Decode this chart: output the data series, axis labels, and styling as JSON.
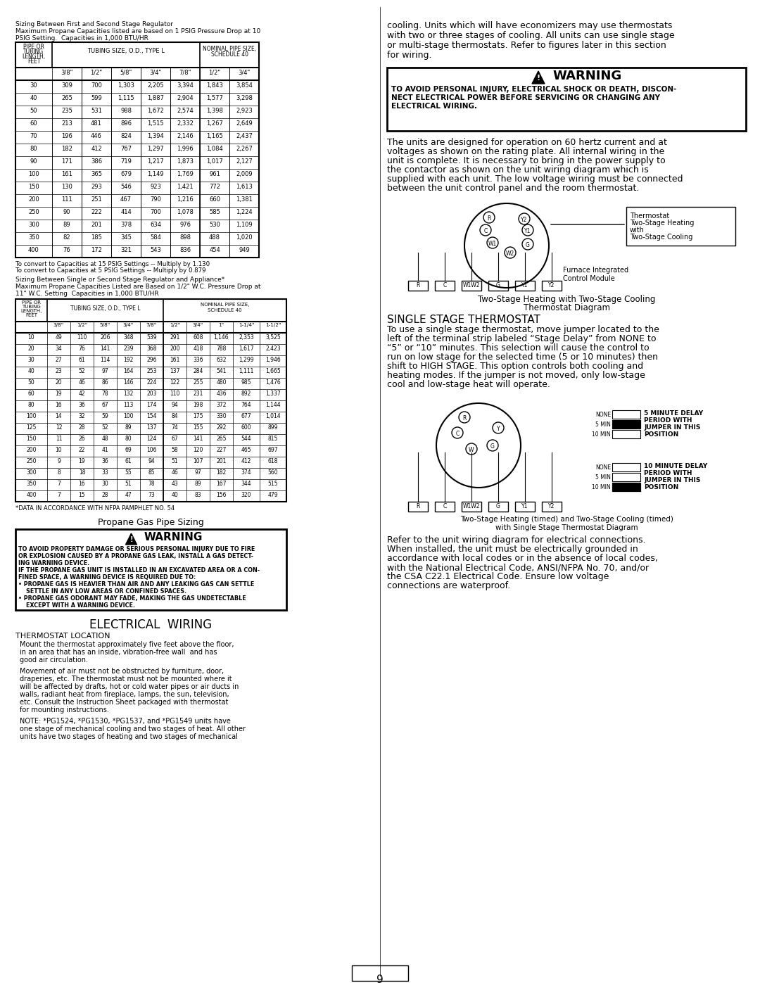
{
  "page_num": "9",
  "bg_color": "#ffffff",
  "title1": "Sizing Between First and Second Stage Regulator",
  "title1_sub1": "Maximum Propane Capacities listed are based on 1 PSIG Pressure Drop at 10",
  "title1_sub2": "PSIG Setting.  Capacities in 1,000 BTU/HR",
  "table1_header1": "PIPE OR\nTUBING\nLENGTH,\nFEET",
  "table1_header2": "TUBING SIZE, O.D., TYPE L",
  "table1_header3": "NOMINAL PIPE SIZE,\nSCHEDULE 40",
  "table1_col_labels": [
    "3/8\"",
    "1/2\"",
    "5/8\"",
    "3/4\"",
    "7/8\"",
    "1/2\"",
    "3/4\""
  ],
  "table1_rows": [
    [
      "30",
      "309",
      "700",
      "1,303",
      "2,205",
      "3,394",
      "1,843",
      "3,854"
    ],
    [
      "40",
      "265",
      "599",
      "1,115",
      "1,887",
      "2,904",
      "1,577",
      "3,298"
    ],
    [
      "50",
      "235",
      "531",
      "988",
      "1,672",
      "2,574",
      "1,398",
      "2,923"
    ],
    [
      "60",
      "213",
      "481",
      "896",
      "1,515",
      "2,332",
      "1,267",
      "2,649"
    ],
    [
      "70",
      "196",
      "446",
      "824",
      "1,394",
      "2,146",
      "1,165",
      "2,437"
    ],
    [
      "80",
      "182",
      "412",
      "767",
      "1,297",
      "1,996",
      "1,084",
      "2,267"
    ],
    [
      "90",
      "171",
      "386",
      "719",
      "1,217",
      "1,873",
      "1,017",
      "2,127"
    ],
    [
      "100",
      "161",
      "365",
      "679",
      "1,149",
      "1,769",
      "961",
      "2,009"
    ],
    [
      "150",
      "130",
      "293",
      "546",
      "923",
      "1,421",
      "772",
      "1,613"
    ],
    [
      "200",
      "111",
      "251",
      "467",
      "790",
      "1,216",
      "660",
      "1,381"
    ],
    [
      "250",
      "90",
      "222",
      "414",
      "700",
      "1,078",
      "585",
      "1,224"
    ],
    [
      "300",
      "89",
      "201",
      "378",
      "634",
      "976",
      "530",
      "1,109"
    ],
    [
      "350",
      "82",
      "185",
      "345",
      "584",
      "898",
      "488",
      "1,020"
    ],
    [
      "400",
      "76",
      "172",
      "321",
      "543",
      "836",
      "454",
      "949"
    ]
  ],
  "table1_footer1": "To convert to Capacities at 15 PSIG Settings -- Multiply by 1.130",
  "table1_footer2": "To convert to Capacities at 5 PSIG Settings -- Multiply by 0.879",
  "title2": "Sizing Between Single or Second Stage Regulator and Appliance*",
  "title2_sub1": "Maximum Propane Capacities Listed are Based on 1/2\" W.C. Pressure Drop at",
  "title2_sub2": "11\" W.C. Setting  Capacities in 1,000 BTU/HR",
  "table2_col_labels": [
    "3/8\"",
    "1/2\"",
    "5/8\"",
    "3/4\"",
    "7/8\"",
    "1/2\"",
    "3/4\"",
    "1\"",
    "1-1/4\"",
    "1-1/2\""
  ],
  "table2_rows": [
    [
      "10",
      "49",
      "110",
      "206",
      "348",
      "539",
      "291",
      "608",
      "1,146",
      "2,353",
      "3,525"
    ],
    [
      "20",
      "34",
      "76",
      "141",
      "239",
      "368",
      "200",
      "418",
      "788",
      "1,617",
      "2,423"
    ],
    [
      "30",
      "27",
      "61",
      "114",
      "192",
      "296",
      "161",
      "336",
      "632",
      "1,299",
      "1,946"
    ],
    [
      "40",
      "23",
      "52",
      "97",
      "164",
      "253",
      "137",
      "284",
      "541",
      "1,111",
      "1,665"
    ],
    [
      "50",
      "20",
      "46",
      "86",
      "146",
      "224",
      "122",
      "255",
      "480",
      "985",
      "1,476"
    ],
    [
      "60",
      "19",
      "42",
      "78",
      "132",
      "203",
      "110",
      "231",
      "436",
      "892",
      "1,337"
    ],
    [
      "80",
      "16",
      "36",
      "67",
      "113",
      "174",
      "94",
      "198",
      "372",
      "764",
      "1,144"
    ],
    [
      "100",
      "14",
      "32",
      "59",
      "100",
      "154",
      "84",
      "175",
      "330",
      "677",
      "1,014"
    ],
    [
      "125",
      "12",
      "28",
      "52",
      "89",
      "137",
      "74",
      "155",
      "292",
      "600",
      "899"
    ],
    [
      "150",
      "11",
      "26",
      "48",
      "80",
      "124",
      "67",
      "141",
      "265",
      "544",
      "815"
    ],
    [
      "200",
      "10",
      "22",
      "41",
      "69",
      "106",
      "58",
      "120",
      "227",
      "465",
      "697"
    ],
    [
      "250",
      "9",
      "19",
      "36",
      "61",
      "94",
      "51",
      "107",
      "201",
      "412",
      "618"
    ],
    [
      "300",
      "8",
      "18",
      "33",
      "55",
      "85",
      "46",
      "97",
      "182",
      "374",
      "560"
    ],
    [
      "350",
      "7",
      "16",
      "30",
      "51",
      "78",
      "43",
      "89",
      "167",
      "344",
      "515"
    ],
    [
      "400",
      "7",
      "15",
      "28",
      "47",
      "73",
      "40",
      "83",
      "156",
      "320",
      "479"
    ]
  ],
  "table2_footer": "*DATA IN ACCORDANCE WITH NFPA PAMPHLET NO. 54",
  "propane_title": "Propane Gas Pipe Sizing",
  "warning1_title": "WARNING",
  "warning1_text": "TO AVOID PROPERTY DAMAGE OR SERIOUS PERSONAL INJURY DUE TO FIRE\nOR EXPLOSION CAUSED BY A PROPANE GAS LEAK, INSTALL A GAS DETECT-\nING WARNING DEVICE.\nIF THE PROPANE GAS UNIT IS INSTALLED IN AN EXCAVATED AREA OR A CON-\nFINED SPACE, A WARNING DEVICE IS REQUIRED DUE TO:\n• PROPANE GAS IS HEAVIER THAN AIR AND ANY LEAKING GAS CAN SETTLE\n    SETTLE IN ANY LOW AREAS OR CONFINED SPACES.\n• PROPANE GAS ODORANT MAY FADE, MAKING THE GAS UNDETECTABLE\n    EXCEPT WITH A WARNING DEVICE.",
  "elec_title": "ELECTRICAL  WIRING",
  "thermostat_loc_title": "THERMOSTAT LOCATION",
  "thermostat_loc_text": "Mount the thermostat approximately five feet above the floor,\nin an area that has an inside, vibration-free wall  and has\ngood air circulation.",
  "movement_text": "Movement of air must not be obstructed by furniture, door,\ndraperies, etc. The thermostat must not be mounted where it\nwill be affected by drafts, hot or cold water pipes or air ducts in\nwalls, radiant heat from fireplace, lamps, the sun, television,\netc. Consult the Instruction Sheet packaged with thermostat\nfor mounting instructions.",
  "note_text": "NOTE: *PG1524, *PG1530, *PG1537, and *PG1549 units have\none stage of mechanical cooling and two stages of heat. All other\nunits have two stages of heating and two stages of mechanical",
  "right_top_text": "cooling. Units which will have economizers may use thermostats\nwith two or three stages of cooling. All units can use single stage\nor multi-stage thermostats. Refer to figures later in this section\nfor wiring.",
  "warning2_title": "WARNING",
  "warning2_text": "TO AVOID PERSONAL INJURY, ELECTRICAL SHOCK OR DEATH, DISCON-\nNECT ELECTRICAL POWER BEFORE SERVICING OR CHANGING ANY\nELECTRICAL WIRING.",
  "elec_body_text": "The units are designed for operation on 60 hertz current and at\nvoltages as shown on the rating plate. All internal wiring in the\nunit is complete. It is necessary to bring in the power supply to\nthe contactor as shown on the unit wiring diagram which is\nsupplied with each unit. The low voltage wiring must be connected\nbetween the unit control panel and the room thermostat.",
  "diagram1_title": "Two-Stage Heating with Two-Stage Cooling\nThermostat Diagram",
  "diagram1_labels": [
    "R",
    "C",
    "W1",
    "W2",
    "G",
    "Y1",
    "Y2"
  ],
  "diagram1_bottom_labels": [
    "R",
    "C",
    "W1W2",
    "G",
    "Y1",
    "Y2"
  ],
  "diagram1_box_label": "Thermostat\nTwo-Stage Heating\nwith\nTwo-Stage Cooling",
  "furnace_label": "Furnace Integrated\nControl Module",
  "single_stage_title": "SINGLE STAGE THERMOSTAT",
  "single_stage_text": "To use a single stage thermostat, move jumper located to the\nleft of the terminal strip labeled “Stage Delay” from NONE to\n“5” or “10” minutes. This selection will cause the control to\nrun on low stage for the selected time (5 or 10 minutes) then\nshift to HIGH STAGE. This option controls both cooling and\nheating modes. If the jumper is not moved, only low-stage\ncool and low-stage heat will operate.",
  "diagram2_labels_left": [
    "R",
    "C",
    "W",
    "G",
    "Y"
  ],
  "diagram2_bottom_labels": [
    "R",
    "C",
    "W1W2",
    "G",
    "Y1",
    "Y2"
  ],
  "delay_5min_text": "5 MINUTE DELAY\nPERIOD WITH\nJUMPER IN THIS\nPOSITION",
  "delay_10min_text": "10 MINUTE DELAY\nPERIOD WITH\nJUMPER IN THIS\nPOSITION",
  "none_5_10": [
    "NONE",
    "5 MIN",
    "10 MIN"
  ],
  "diagram2_title": "Two-Stage Heating (timed) and Two-Stage Cooling (timed)\nwith Single Stage Thermostat Diagram",
  "final_text": "Refer to the unit wiring diagram for electrical connections.\nWhen installed, the unit must be electrically grounded in\naccordance with local codes or in the absence of local codes,\nwith the National Electrical Code, ANSI/NFPA No. 70, and/or\nthe CSA C22.1 Electrical Code. Ensure low voltage\nconnections are waterproof."
}
